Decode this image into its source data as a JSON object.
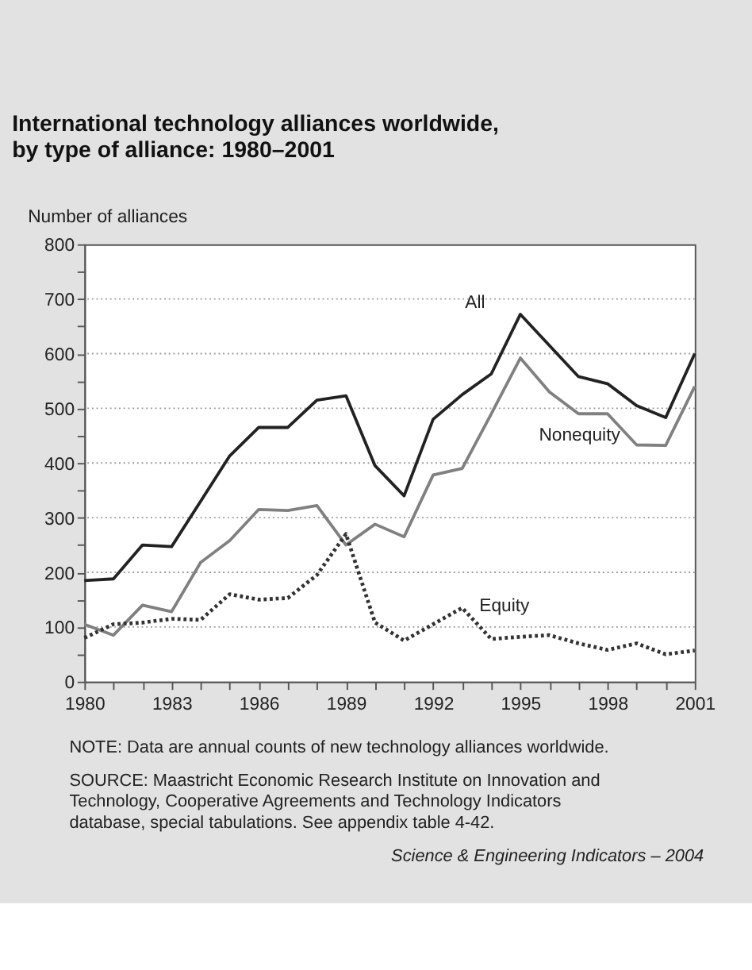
{
  "chart_data": {
    "type": "line",
    "title": "International technology alliances worldwide, by type of alliance: 1980–2001",
    "ylabel": "Number of alliances",
    "x": [
      1980,
      1981,
      1982,
      1983,
      1984,
      1985,
      1986,
      1987,
      1988,
      1989,
      1990,
      1991,
      1992,
      1993,
      1994,
      1995,
      1996,
      1997,
      1998,
      1999,
      2000,
      2001
    ],
    "series": [
      {
        "name": "All",
        "color": "#222222",
        "line_style": "solid",
        "values": [
          185,
          188,
          250,
          247,
          330,
          413,
          465,
          465,
          515,
          523,
          395,
          340,
          480,
          525,
          563,
          672,
          615,
          558,
          545,
          505,
          483,
          600
        ]
      },
      {
        "name": "Nonequity",
        "color": "#808080",
        "line_style": "solid",
        "values": [
          105,
          85,
          140,
          128,
          218,
          258,
          315,
          313,
          322,
          250,
          288,
          265,
          378,
          390,
          490,
          592,
          530,
          490,
          490,
          433,
          432,
          540
        ]
      },
      {
        "name": "Equity",
        "color": "#333333",
        "line_style": "dotted",
        "values": [
          80,
          105,
          108,
          115,
          113,
          160,
          150,
          153,
          195,
          270,
          108,
          75,
          105,
          135,
          78,
          82,
          85,
          70,
          58,
          70,
          50,
          57
        ]
      }
    ],
    "xlim": [
      1980,
      2001
    ],
    "xticks": [
      1980,
      {
        "value": 1981,
        "label": null
      },
      {
        "value": 1982,
        "label": null
      },
      1983,
      {
        "value": 1984,
        "label": null
      },
      {
        "value": 1985,
        "label": null
      },
      1986,
      {
        "value": 1987,
        "label": null
      },
      {
        "value": 1988,
        "label": null
      },
      1989,
      {
        "value": 1990,
        "label": null
      },
      {
        "value": 1991,
        "label": null
      },
      1992,
      {
        "value": 1993,
        "label": null
      },
      {
        "value": 1994,
        "label": null
      },
      1995,
      {
        "value": 1996,
        "label": null
      },
      {
        "value": 1997,
        "label": null
      },
      1998,
      {
        "value": 1999,
        "label": null
      },
      {
        "value": 2000,
        "label": null
      },
      2001
    ],
    "ylim": [
      0,
      800
    ],
    "yticks": [
      0,
      {
        "value": 50,
        "label": null
      },
      100,
      {
        "value": 150,
        "label": null
      },
      200,
      {
        "value": 250,
        "label": null
      },
      300,
      {
        "value": 350,
        "label": null
      },
      400,
      {
        "value": 450,
        "label": null
      },
      500,
      {
        "value": 550,
        "label": null
      },
      600,
      {
        "value": 650,
        "label": null
      },
      700,
      {
        "value": 750,
        "label": null
      },
      800
    ],
    "grid": "y",
    "legend": false,
    "marker": "none",
    "annotations": [
      "NOTE: Data are annual counts of new technology alliances worldwide.",
      "SOURCE: Maastricht Economic Research Institute on Innovation and Technology, Cooperative Agreements and Technology Indicators database, special tabulations. See appendix table 4-42.",
      "Science & Engineering Indicators – 2004"
    ]
  }
}
